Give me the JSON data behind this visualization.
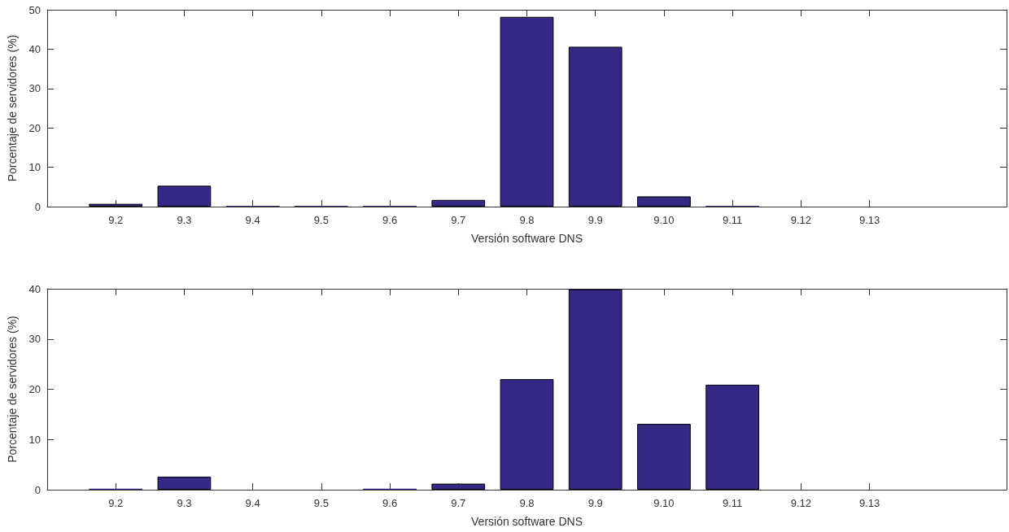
{
  "chart_data": [
    {
      "type": "bar",
      "xlabel": "Versión software DNS",
      "ylabel": "Porcentaje de servidores (%)",
      "categories": [
        null,
        "9.2",
        "9.3",
        "9.4",
        "9.5",
        "9.6",
        "9.7",
        "9.8",
        "9.9",
        "9.10",
        "9.11",
        "9.12",
        "9.13",
        null,
        null
      ],
      "values": [
        null,
        0.7,
        5.3,
        0.2,
        0.2,
        0.2,
        1.7,
        48.2,
        40.6,
        2.6,
        0.2,
        0,
        0,
        null,
        null
      ],
      "color": "#342a85",
      "ylim": [
        0,
        50
      ],
      "yticks": [
        0,
        10,
        20,
        30,
        40,
        50
      ],
      "grid": false
    },
    {
      "type": "bar",
      "xlabel": "Versión software DNS",
      "ylabel": "Porcentaje de servidores (%)",
      "categories": [
        null,
        "9.2",
        "9.3",
        "9.4",
        "9.5",
        "9.6",
        "9.7",
        "9.8",
        "9.9",
        "9.10",
        "9.11",
        "9.12",
        "9.13",
        null,
        null
      ],
      "values": [
        null,
        0.2,
        2.6,
        0,
        0,
        0.2,
        1.2,
        22.0,
        39.9,
        13.1,
        20.9,
        0,
        0,
        null,
        null
      ],
      "color": "#342a85",
      "ylim": [
        0,
        40
      ],
      "yticks": [
        0,
        10,
        20,
        30,
        40
      ],
      "grid": false
    }
  ]
}
